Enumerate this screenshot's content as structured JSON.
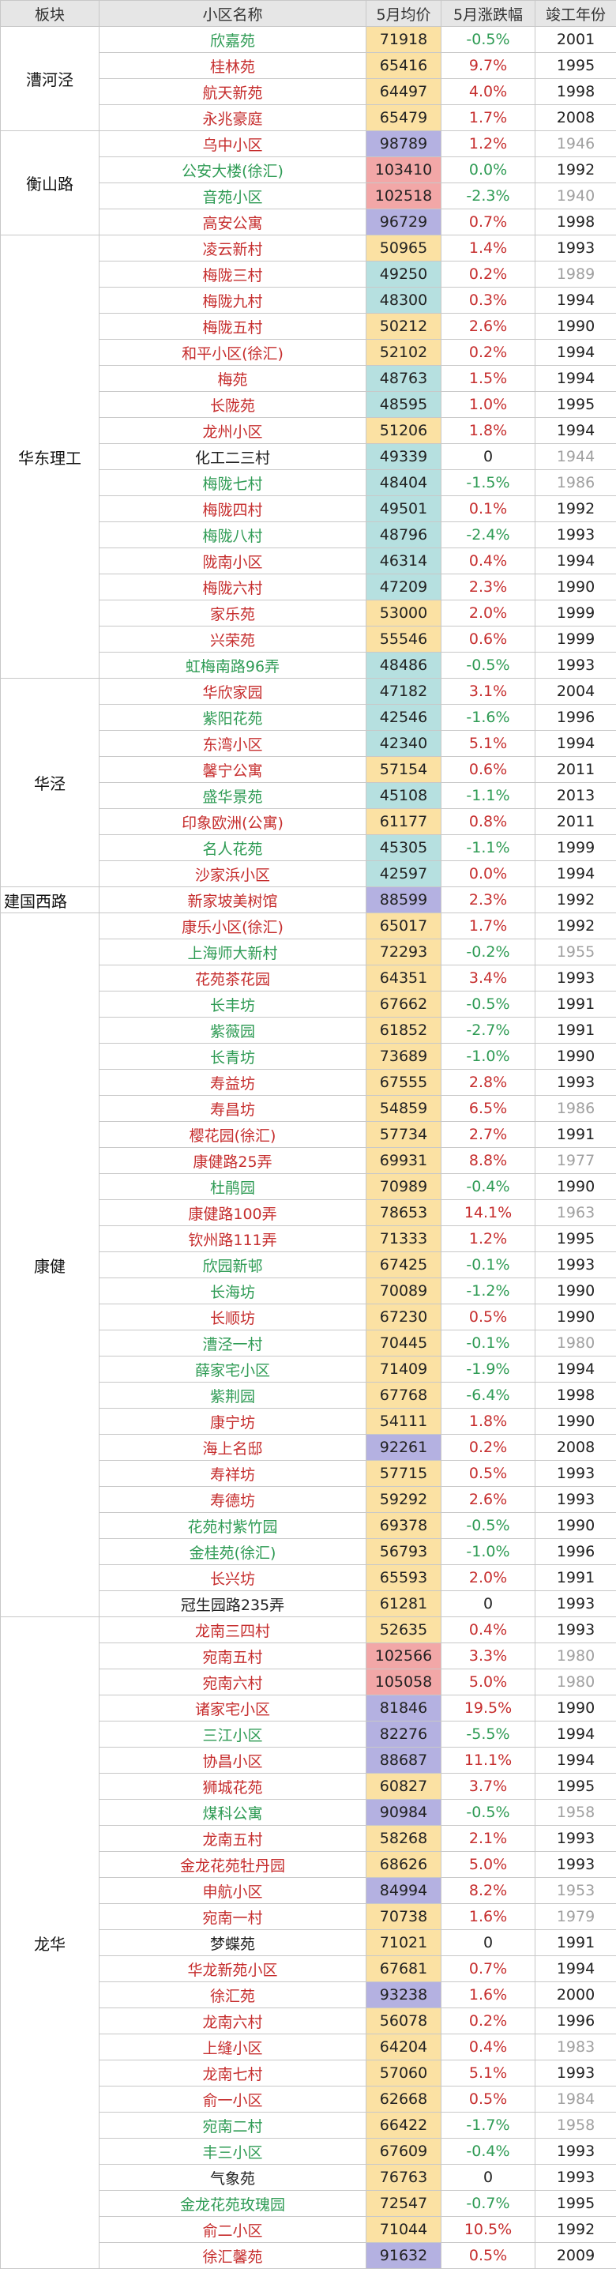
{
  "header": [
    "板块",
    "小区名称",
    "5月均价",
    "5月涨跌幅",
    "竣工年份"
  ],
  "sections": [
    {
      "block": "漕河泾",
      "rows": [
        {
          "name": "欣嘉苑",
          "price": 71918,
          "change": "-0.5%",
          "year": 2001,
          "color": "#2e9b54",
          "bg": "#fbe1a3",
          "year_color": "#222222"
        },
        {
          "name": "桂林苑",
          "price": 65416,
          "change": "9.7%",
          "year": 1995,
          "color": "#c62d2d",
          "bg": "#fbe1a3",
          "year_color": "#222222"
        },
        {
          "name": "航天新苑",
          "price": 64497,
          "change": "4.0%",
          "year": 1998,
          "color": "#c62d2d",
          "bg": "#fbe1a3",
          "year_color": "#222222"
        },
        {
          "name": "永兆豪庭",
          "price": 65479,
          "change": "1.7%",
          "year": 2008,
          "color": "#c62d2d",
          "bg": "#fbe1a3",
          "year_color": "#222222"
        }
      ]
    },
    {
      "block": "衡山路",
      "rows": [
        {
          "name": "乌中小区",
          "price": 98789,
          "change": "1.2%",
          "year": 1946,
          "color": "#c62d2d",
          "bg": "#b4b1e1",
          "year_color": "#a0a0a0"
        },
        {
          "name": "公安大楼(徐汇)",
          "price": 103410,
          "change": "0.0%",
          "year": 1992,
          "color": "#2e9b54",
          "bg": "#f2a7a7",
          "year_color": "#222222"
        },
        {
          "name": "音苑小区",
          "price": 102518,
          "change": "-2.3%",
          "year": 1940,
          "color": "#2e9b54",
          "bg": "#f2a7a7",
          "year_color": "#a0a0a0"
        },
        {
          "name": "高安公寓",
          "price": 96729,
          "change": "0.7%",
          "year": 1998,
          "color": "#c62d2d",
          "bg": "#b4b1e1",
          "year_color": "#222222"
        }
      ]
    },
    {
      "block": "华东理工",
      "rows": [
        {
          "name": "凌云新村",
          "price": 50965,
          "change": "1.4%",
          "year": 1993,
          "color": "#c62d2d",
          "bg": "#fbe1a3",
          "year_color": "#222222"
        },
        {
          "name": "梅陇三村",
          "price": 49250,
          "change": "0.2%",
          "year": 1989,
          "color": "#c62d2d",
          "bg": "#b6e0e0",
          "year_color": "#a0a0a0"
        },
        {
          "name": "梅陇九村",
          "price": 48300,
          "change": "0.3%",
          "year": 1994,
          "color": "#c62d2d",
          "bg": "#b6e0e0",
          "year_color": "#222222"
        },
        {
          "name": "梅陇五村",
          "price": 50212,
          "change": "2.6%",
          "year": 1990,
          "color": "#c62d2d",
          "bg": "#fbe1a3",
          "year_color": "#222222"
        },
        {
          "name": "和平小区(徐汇)",
          "price": 52102,
          "change": "0.2%",
          "year": 1994,
          "color": "#c62d2d",
          "bg": "#fbe1a3",
          "year_color": "#222222"
        },
        {
          "name": "梅苑",
          "price": 48763,
          "change": "1.5%",
          "year": 1994,
          "color": "#c62d2d",
          "bg": "#b6e0e0",
          "year_color": "#222222"
        },
        {
          "name": "长陇苑",
          "price": 48595,
          "change": "1.0%",
          "year": 1995,
          "color": "#c62d2d",
          "bg": "#b6e0e0",
          "year_color": "#222222"
        },
        {
          "name": "龙州小区",
          "price": 51206,
          "change": "1.8%",
          "year": 1994,
          "color": "#c62d2d",
          "bg": "#fbe1a3",
          "year_color": "#222222"
        },
        {
          "name": "化工二三村",
          "price": 49339,
          "change": "0",
          "year": 1944,
          "color": "#222222",
          "bg": "#b6e0e0",
          "year_color": "#a0a0a0"
        },
        {
          "name": "梅陇七村",
          "price": 48404,
          "change": "-1.5%",
          "year": 1986,
          "color": "#2e9b54",
          "bg": "#b6e0e0",
          "year_color": "#a0a0a0"
        },
        {
          "name": "梅陇四村",
          "price": 49501,
          "change": "0.1%",
          "year": 1992,
          "color": "#c62d2d",
          "bg": "#b6e0e0",
          "year_color": "#222222"
        },
        {
          "name": "梅陇八村",
          "price": 48796,
          "change": "-2.4%",
          "year": 1993,
          "color": "#2e9b54",
          "bg": "#b6e0e0",
          "year_color": "#222222"
        },
        {
          "name": "陇南小区",
          "price": 46314,
          "change": "0.4%",
          "year": 1994,
          "color": "#c62d2d",
          "bg": "#b6e0e0",
          "year_color": "#222222"
        },
        {
          "name": "梅陇六村",
          "price": 47209,
          "change": "2.3%",
          "year": 1990,
          "color": "#c62d2d",
          "bg": "#b6e0e0",
          "year_color": "#222222"
        },
        {
          "name": "家乐苑",
          "price": 53000,
          "change": "2.0%",
          "year": 1999,
          "color": "#c62d2d",
          "bg": "#fbe1a3",
          "year_color": "#222222"
        },
        {
          "name": "兴荣苑",
          "price": 55546,
          "change": "0.6%",
          "year": 1999,
          "color": "#c62d2d",
          "bg": "#fbe1a3",
          "year_color": "#222222"
        },
        {
          "name": "虹梅南路96弄",
          "price": 48486,
          "change": "-0.5%",
          "year": 1993,
          "color": "#2e9b54",
          "bg": "#b6e0e0",
          "year_color": "#222222"
        }
      ]
    },
    {
      "block": "华泾",
      "rows": [
        {
          "name": "华欣家园",
          "price": 47182,
          "change": "3.1%",
          "year": 2004,
          "color": "#c62d2d",
          "bg": "#b6e0e0",
          "year_color": "#222222"
        },
        {
          "name": "紫阳花苑",
          "price": 42546,
          "change": "-1.6%",
          "year": 1996,
          "color": "#2e9b54",
          "bg": "#b6e0e0",
          "year_color": "#222222"
        },
        {
          "name": "东湾小区",
          "price": 42340,
          "change": "5.1%",
          "year": 1994,
          "color": "#c62d2d",
          "bg": "#b6e0e0",
          "year_color": "#222222"
        },
        {
          "name": "馨宁公寓",
          "price": 57154,
          "change": "0.6%",
          "year": 2011,
          "color": "#c62d2d",
          "bg": "#fbe1a3",
          "year_color": "#222222"
        },
        {
          "name": "盛华景苑",
          "price": 45108,
          "change": "-1.1%",
          "year": 2013,
          "color": "#2e9b54",
          "bg": "#b6e0e0",
          "year_color": "#222222"
        },
        {
          "name": "印象欧洲(公寓)",
          "price": 61177,
          "change": "0.8%",
          "year": 2011,
          "color": "#c62d2d",
          "bg": "#fbe1a3",
          "year_color": "#222222"
        },
        {
          "name": "名人花苑",
          "price": 45305,
          "change": "-1.1%",
          "year": 1999,
          "color": "#2e9b54",
          "bg": "#b6e0e0",
          "year_color": "#222222"
        },
        {
          "name": "沙家浜小区",
          "price": 42597,
          "change": "0.0%",
          "year": 1994,
          "color": "#c62d2d",
          "bg": "#b6e0e0",
          "year_color": "#222222"
        }
      ]
    },
    {
      "block": "建国西路",
      "rows": [
        {
          "name": "新家坡美树馆",
          "price": 88599,
          "change": "2.3%",
          "year": 1992,
          "color": "#c62d2d",
          "bg": "#b4b1e1",
          "year_color": "#222222"
        }
      ]
    },
    {
      "block": "康健",
      "rows": [
        {
          "name": "康乐小区(徐汇)",
          "price": 65017,
          "change": "1.7%",
          "year": 1992,
          "color": "#c62d2d",
          "bg": "#fbe1a3",
          "year_color": "#222222"
        },
        {
          "name": "上海师大新村",
          "price": 72293,
          "change": "-0.2%",
          "year": 1955,
          "color": "#2e9b54",
          "bg": "#fbe1a3",
          "year_color": "#a0a0a0"
        },
        {
          "name": "花苑茶花园",
          "price": 64351,
          "change": "3.4%",
          "year": 1993,
          "color": "#c62d2d",
          "bg": "#fbe1a3",
          "year_color": "#222222"
        },
        {
          "name": "长丰坊",
          "price": 67662,
          "change": "-0.5%",
          "year": 1991,
          "color": "#2e9b54",
          "bg": "#fbe1a3",
          "year_color": "#222222"
        },
        {
          "name": "紫薇园",
          "price": 61852,
          "change": "-2.7%",
          "year": 1991,
          "color": "#2e9b54",
          "bg": "#fbe1a3",
          "year_color": "#222222"
        },
        {
          "name": "长青坊",
          "price": 73689,
          "change": "-1.0%",
          "year": 1990,
          "color": "#2e9b54",
          "bg": "#fbe1a3",
          "year_color": "#222222"
        },
        {
          "name": "寿益坊",
          "price": 67555,
          "change": "2.8%",
          "year": 1993,
          "color": "#c62d2d",
          "bg": "#fbe1a3",
          "year_color": "#222222"
        },
        {
          "name": "寿昌坊",
          "price": 54859,
          "change": "6.5%",
          "year": 1986,
          "color": "#c62d2d",
          "bg": "#fbe1a3",
          "year_color": "#a0a0a0"
        },
        {
          "name": "樱花园(徐汇)",
          "price": 57734,
          "change": "2.7%",
          "year": 1991,
          "color": "#c62d2d",
          "bg": "#fbe1a3",
          "year_color": "#222222"
        },
        {
          "name": "康健路25弄",
          "price": 69931,
          "change": "8.8%",
          "year": 1977,
          "color": "#c62d2d",
          "bg": "#fbe1a3",
          "year_color": "#a0a0a0"
        },
        {
          "name": "杜鹃园",
          "price": 70989,
          "change": "-0.4%",
          "year": 1990,
          "color": "#2e9b54",
          "bg": "#fbe1a3",
          "year_color": "#222222"
        },
        {
          "name": "康健路100弄",
          "price": 78653,
          "change": "14.1%",
          "year": 1963,
          "color": "#c62d2d",
          "bg": "#fbe1a3",
          "year_color": "#a0a0a0"
        },
        {
          "name": "钦州路111弄",
          "price": 71333,
          "change": "1.2%",
          "year": 1995,
          "color": "#c62d2d",
          "bg": "#fbe1a3",
          "year_color": "#222222"
        },
        {
          "name": "欣园新邨",
          "price": 67425,
          "change": "-0.1%",
          "year": 1993,
          "color": "#2e9b54",
          "bg": "#fbe1a3",
          "year_color": "#222222"
        },
        {
          "name": "长海坊",
          "price": 70089,
          "change": "-1.2%",
          "year": 1990,
          "color": "#2e9b54",
          "bg": "#fbe1a3",
          "year_color": "#222222"
        },
        {
          "name": "长顺坊",
          "price": 67230,
          "change": "0.5%",
          "year": 1990,
          "color": "#c62d2d",
          "bg": "#fbe1a3",
          "year_color": "#222222"
        },
        {
          "name": "漕泾一村",
          "price": 70445,
          "change": "-0.1%",
          "year": 1980,
          "color": "#2e9b54",
          "bg": "#fbe1a3",
          "year_color": "#a0a0a0"
        },
        {
          "name": "薛家宅小区",
          "price": 71409,
          "change": "-1.9%",
          "year": 1994,
          "color": "#2e9b54",
          "bg": "#fbe1a3",
          "year_color": "#222222"
        },
        {
          "name": "紫荆园",
          "price": 67768,
          "change": "-6.4%",
          "year": 1998,
          "color": "#2e9b54",
          "bg": "#fbe1a3",
          "year_color": "#222222"
        },
        {
          "name": "康宁坊",
          "price": 54111,
          "change": "1.8%",
          "year": 1990,
          "color": "#c62d2d",
          "bg": "#fbe1a3",
          "year_color": "#222222"
        },
        {
          "name": "海上名邸",
          "price": 92261,
          "change": "0.2%",
          "year": 2008,
          "color": "#c62d2d",
          "bg": "#b4b1e1",
          "year_color": "#222222"
        },
        {
          "name": "寿祥坊",
          "price": 57715,
          "change": "0.5%",
          "year": 1993,
          "color": "#c62d2d",
          "bg": "#fbe1a3",
          "year_color": "#222222"
        },
        {
          "name": "寿德坊",
          "price": 59292,
          "change": "2.6%",
          "year": 1993,
          "color": "#c62d2d",
          "bg": "#fbe1a3",
          "year_color": "#222222"
        },
        {
          "name": "花苑村紫竹园",
          "price": 69378,
          "change": "-0.5%",
          "year": 1990,
          "color": "#2e9b54",
          "bg": "#fbe1a3",
          "year_color": "#222222"
        },
        {
          "name": "金桂苑(徐汇)",
          "price": 56793,
          "change": "-1.0%",
          "year": 1996,
          "color": "#2e9b54",
          "bg": "#fbe1a3",
          "year_color": "#222222"
        },
        {
          "name": "长兴坊",
          "price": 65593,
          "change": "2.0%",
          "year": 1991,
          "color": "#c62d2d",
          "bg": "#fbe1a3",
          "year_color": "#222222"
        },
        {
          "name": "冠生园路235弄",
          "price": 61281,
          "change": "0",
          "year": 1993,
          "color": "#222222",
          "bg": "#fbe1a3",
          "year_color": "#222222"
        }
      ]
    },
    {
      "block": "龙华",
      "rows": [
        {
          "name": "龙南三四村",
          "price": 52635,
          "change": "0.4%",
          "year": 1993,
          "color": "#c62d2d",
          "bg": "#fbe1a3",
          "year_color": "#222222"
        },
        {
          "name": "宛南五村",
          "price": 102566,
          "change": "3.3%",
          "year": 1980,
          "color": "#c62d2d",
          "bg": "#f2a7a7",
          "year_color": "#a0a0a0"
        },
        {
          "name": "宛南六村",
          "price": 105058,
          "change": "5.0%",
          "year": 1980,
          "color": "#c62d2d",
          "bg": "#f2a7a7",
          "year_color": "#a0a0a0"
        },
        {
          "name": "诸家宅小区",
          "price": 81846,
          "change": "19.5%",
          "year": 1990,
          "color": "#c62d2d",
          "bg": "#b4b1e1",
          "year_color": "#222222"
        },
        {
          "name": "三江小区",
          "price": 82276,
          "change": "-5.5%",
          "year": 1994,
          "color": "#2e9b54",
          "bg": "#b4b1e1",
          "year_color": "#222222"
        },
        {
          "name": "协昌小区",
          "price": 88687,
          "change": "11.1%",
          "year": 1994,
          "color": "#c62d2d",
          "bg": "#b4b1e1",
          "year_color": "#222222"
        },
        {
          "name": "狮城花苑",
          "price": 60827,
          "change": "3.7%",
          "year": 1995,
          "color": "#c62d2d",
          "bg": "#fbe1a3",
          "year_color": "#222222"
        },
        {
          "name": "煤科公寓",
          "price": 90984,
          "change": "-0.5%",
          "year": 1958,
          "color": "#2e9b54",
          "bg": "#b4b1e1",
          "year_color": "#a0a0a0"
        },
        {
          "name": "龙南五村",
          "price": 58268,
          "change": "2.1%",
          "year": 1993,
          "color": "#c62d2d",
          "bg": "#fbe1a3",
          "year_color": "#222222"
        },
        {
          "name": "金龙花苑牡丹园",
          "price": 68626,
          "change": "5.0%",
          "year": 1993,
          "color": "#c62d2d",
          "bg": "#fbe1a3",
          "year_color": "#222222"
        },
        {
          "name": "申航小区",
          "price": 84994,
          "change": "8.2%",
          "year": 1953,
          "color": "#c62d2d",
          "bg": "#b4b1e1",
          "year_color": "#a0a0a0"
        },
        {
          "name": "宛南一村",
          "price": 70738,
          "change": "1.6%",
          "year": 1979,
          "color": "#c62d2d",
          "bg": "#fbe1a3",
          "year_color": "#a0a0a0"
        },
        {
          "name": "梦蝶苑",
          "price": 71021,
          "change": "0",
          "year": 1991,
          "color": "#222222",
          "bg": "#fbe1a3",
          "year_color": "#222222"
        },
        {
          "name": "华龙新苑小区",
          "price": 67681,
          "change": "0.7%",
          "year": 1994,
          "color": "#c62d2d",
          "bg": "#fbe1a3",
          "year_color": "#222222"
        },
        {
          "name": "徐汇苑",
          "price": 93238,
          "change": "1.6%",
          "year": 2000,
          "color": "#c62d2d",
          "bg": "#b4b1e1",
          "year_color": "#222222"
        },
        {
          "name": "龙南六村",
          "price": 56078,
          "change": "0.2%",
          "year": 1996,
          "color": "#c62d2d",
          "bg": "#fbe1a3",
          "year_color": "#222222"
        },
        {
          "name": "上缝小区",
          "price": 64204,
          "change": "0.4%",
          "year": 1983,
          "color": "#c62d2d",
          "bg": "#fbe1a3",
          "year_color": "#a0a0a0"
        },
        {
          "name": "龙南七村",
          "price": 57060,
          "change": "5.1%",
          "year": 1993,
          "color": "#c62d2d",
          "bg": "#fbe1a3",
          "year_color": "#222222"
        },
        {
          "name": "俞一小区",
          "price": 62668,
          "change": "0.5%",
          "year": 1984,
          "color": "#c62d2d",
          "bg": "#fbe1a3",
          "year_color": "#a0a0a0"
        },
        {
          "name": "宛南二村",
          "price": 66422,
          "change": "-1.7%",
          "year": 1958,
          "color": "#2e9b54",
          "bg": "#fbe1a3",
          "year_color": "#a0a0a0"
        },
        {
          "name": "丰三小区",
          "price": 67609,
          "change": "-0.4%",
          "year": 1993,
          "color": "#2e9b54",
          "bg": "#fbe1a3",
          "year_color": "#222222"
        },
        {
          "name": "气象苑",
          "price": 76763,
          "change": "0",
          "year": 1993,
          "color": "#222222",
          "bg": "#fbe1a3",
          "year_color": "#222222"
        },
        {
          "name": "金龙花苑玫瑰园",
          "price": 72547,
          "change": "-0.7%",
          "year": 1995,
          "color": "#2e9b54",
          "bg": "#fbe1a3",
          "year_color": "#222222"
        },
        {
          "name": "俞二小区",
          "price": 71044,
          "change": "10.5%",
          "year": 1992,
          "color": "#c62d2d",
          "bg": "#fbe1a3",
          "year_color": "#222222"
        },
        {
          "name": "徐汇馨苑",
          "price": 91632,
          "change": "0.5%",
          "year": 2009,
          "color": "#c62d2d",
          "bg": "#b4b1e1",
          "year_color": "#222222"
        }
      ]
    }
  ]
}
